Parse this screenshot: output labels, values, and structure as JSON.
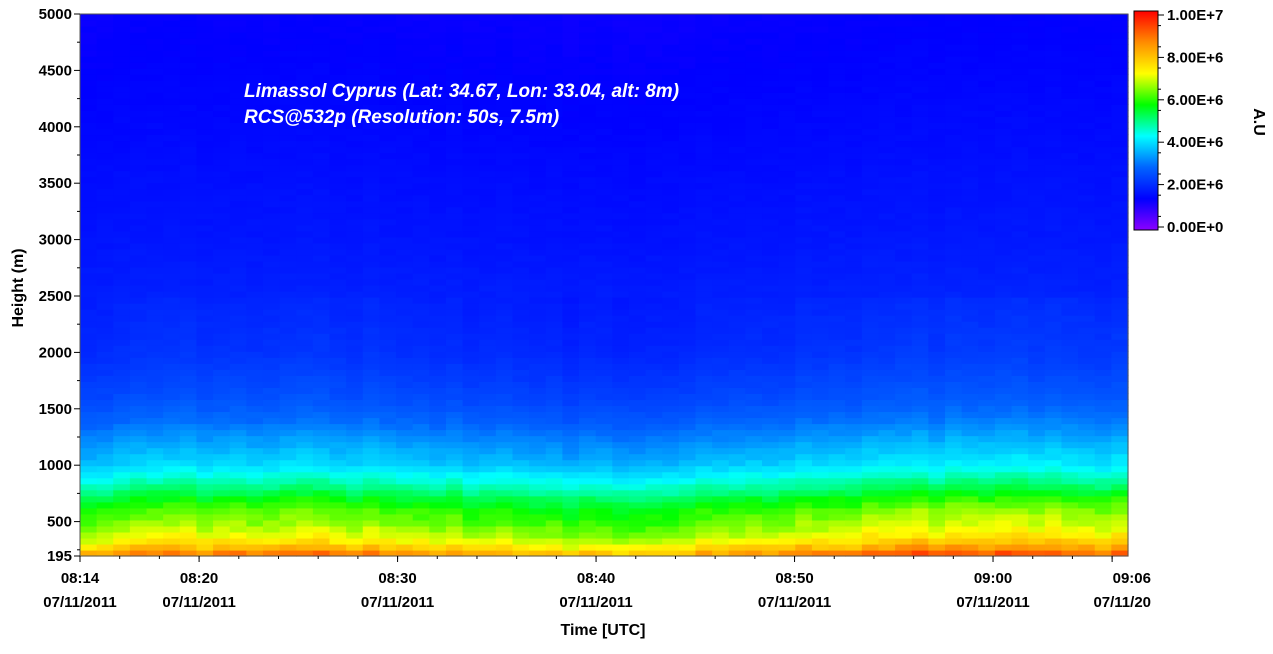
{
  "chart_data": {
    "type": "heatmap",
    "title": "",
    "annotation_lines": [
      "Limassol Cyprus (Lat: 34.67, Lon: 33.04, alt: 8m)",
      "RCS@532p (Resolution: 50s, 7.5m)"
    ],
    "xlabel": "Time [UTC]",
    "ylabel": "Height (m)",
    "colorbar_label": "A.U",
    "x_ticks": [
      {
        "time": "08:14",
        "date": "07/11/2011",
        "minutes": 0
      },
      {
        "time": "08:20",
        "date": "07/11/2011",
        "minutes": 6
      },
      {
        "time": "08:30",
        "date": "07/11/2011",
        "minutes": 16
      },
      {
        "time": "08:40",
        "date": "07/11/2011",
        "minutes": 26
      },
      {
        "time": "08:50",
        "date": "07/11/2011",
        "minutes": 36
      },
      {
        "time": "09:00",
        "date": "07/11/2011",
        "minutes": 46
      },
      {
        "time": "09:06",
        "date": "07/11/20",
        "minutes": 52
      }
    ],
    "xlim_minutes": [
      0,
      52.8
    ],
    "y_ticks": [
      195,
      500,
      1000,
      1500,
      2000,
      2500,
      3000,
      3500,
      4000,
      4500,
      5000
    ],
    "ylim": [
      195,
      5000
    ],
    "colorbar": {
      "range": [
        0,
        10000000
      ],
      "tick_values": [
        0,
        2000000,
        4000000,
        6000000,
        8000000,
        10000000
      ],
      "tick_labels": [
        "0.00E+0",
        "2.00E+6",
        "4.00E+6",
        "6.00E+6",
        "8.00E+6",
        "1.00E+7"
      ],
      "colors": [
        "#8a00ff",
        "#0000ff",
        "#0064ff",
        "#00ffff",
        "#00ff00",
        "#ffff00",
        "#ff8c00",
        "#ff0000"
      ]
    },
    "profile": {
      "heights": [
        195,
        300,
        400,
        500,
        600,
        700,
        800,
        900,
        1000,
        1200,
        1400,
        1600,
        2000,
        2500,
        3000,
        4000,
        5000
      ],
      "values": [
        8500000,
        7300000,
        6600000,
        6200000,
        5900000,
        5400000,
        4800000,
        4300000,
        3800000,
        3300000,
        2800000,
        2450000,
        2050000,
        1850000,
        1700000,
        1500000,
        1350000
      ]
    }
  }
}
